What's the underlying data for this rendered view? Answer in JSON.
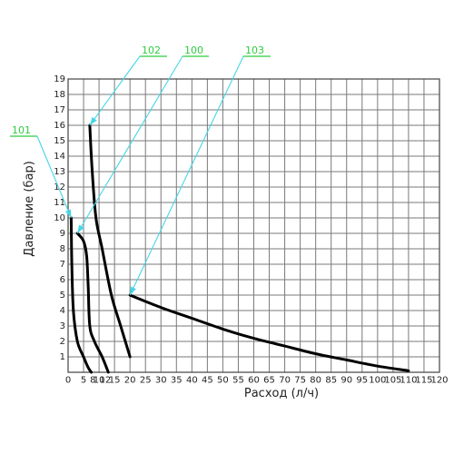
{
  "chart_data": {
    "type": "line",
    "xlabel": "Расход (л/ч)",
    "ylabel": "Давление (бар)",
    "xlim": [
      0,
      120
    ],
    "ylim": [
      0,
      19
    ],
    "x_ticks": [
      0,
      5,
      10,
      15,
      20,
      25,
      30,
      35,
      40,
      45,
      50,
      55,
      60,
      65,
      70,
      75,
      80,
      85,
      90,
      95,
      100,
      105,
      110,
      115,
      120
    ],
    "y_ticks": [
      1,
      2,
      3,
      4,
      5,
      6,
      7,
      8,
      9,
      10,
      11,
      12,
      13,
      14,
      15,
      16,
      17,
      18,
      19
    ],
    "extra_x_tick_labels": [
      8,
      12
    ],
    "grid": true,
    "series": [
      {
        "name": "101",
        "points": [
          [
            1,
            10
          ],
          [
            1.2,
            7
          ],
          [
            1.7,
            4
          ],
          [
            3,
            2
          ],
          [
            5,
            1
          ],
          [
            6.5,
            0.3
          ],
          [
            7.5,
            0
          ]
        ]
      },
      {
        "name": "100",
        "points": [
          [
            3,
            9
          ],
          [
            5,
            8.5
          ],
          [
            6,
            7.5
          ],
          [
            6.5,
            5.5
          ],
          [
            7,
            3
          ],
          [
            8.5,
            2
          ],
          [
            11,
            1
          ],
          [
            13,
            0
          ]
        ]
      },
      {
        "name": "102",
        "points": [
          [
            7,
            16
          ],
          [
            7.8,
            13
          ],
          [
            9,
            10
          ],
          [
            11,
            8
          ],
          [
            14,
            5
          ],
          [
            17,
            3
          ],
          [
            20,
            1
          ]
        ]
      },
      {
        "name": "103",
        "points": [
          [
            20,
            5
          ],
          [
            30,
            4.2
          ],
          [
            40,
            3.5
          ],
          [
            50,
            2.8
          ],
          [
            60,
            2.2
          ],
          [
            70,
            1.7
          ],
          [
            80,
            1.2
          ],
          [
            90,
            0.8
          ],
          [
            100,
            0.4
          ],
          [
            110,
            0.1
          ]
        ]
      }
    ],
    "callouts": [
      {
        "label": "101",
        "target": [
          1,
          10
        ]
      },
      {
        "label": "102",
        "target": [
          7,
          16
        ]
      },
      {
        "label": "100",
        "target": [
          3,
          9
        ]
      },
      {
        "label": "103",
        "target": [
          20,
          5
        ]
      }
    ]
  }
}
